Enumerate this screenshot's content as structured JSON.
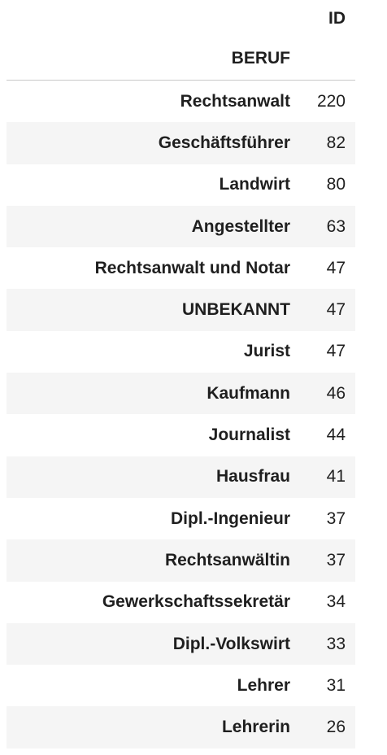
{
  "table": {
    "column_header": "ID",
    "index_name": "BERUF",
    "rows": [
      {
        "label": "Rechtsanwalt",
        "value": "220"
      },
      {
        "label": "Geschäftsführer",
        "value": "82"
      },
      {
        "label": "Landwirt",
        "value": "80"
      },
      {
        "label": "Angestellter",
        "value": "63"
      },
      {
        "label": "Rechtsanwalt und Notar",
        "value": "47"
      },
      {
        "label": "UNBEKANNT",
        "value": "47"
      },
      {
        "label": "Jurist",
        "value": "47"
      },
      {
        "label": "Kaufmann",
        "value": "46"
      },
      {
        "label": "Journalist",
        "value": "44"
      },
      {
        "label": "Hausfrau",
        "value": "41"
      },
      {
        "label": "Dipl.-Ingenieur",
        "value": "37"
      },
      {
        "label": "Rechtsanwältin",
        "value": "37"
      },
      {
        "label": "Gewerkschaftssekretär",
        "value": "34"
      },
      {
        "label": "Dipl.-Volkswirt",
        "value": "33"
      },
      {
        "label": "Lehrer",
        "value": "31"
      },
      {
        "label": "Lehrerin",
        "value": "26"
      }
    ]
  },
  "colors": {
    "stripe": "#f5f5f5",
    "text": "#1f1f1f",
    "header_rule": "#c8c8c8"
  }
}
